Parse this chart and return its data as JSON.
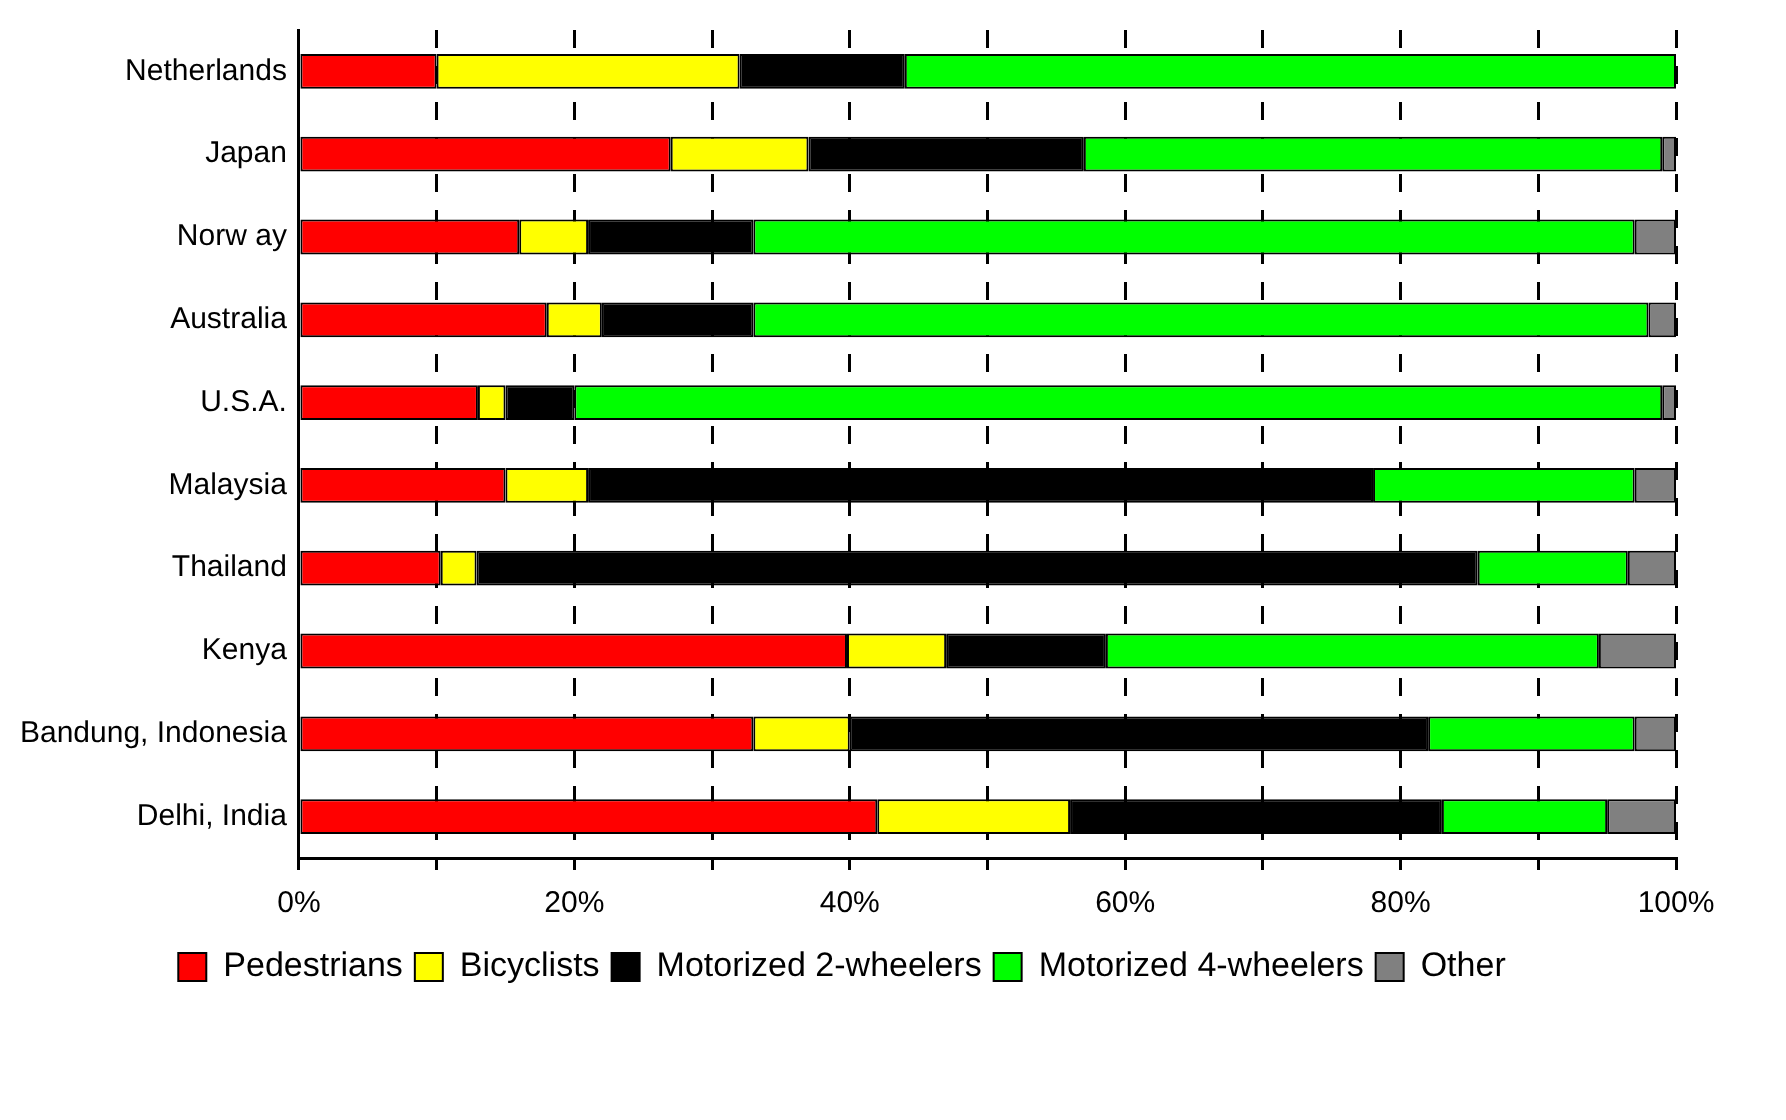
{
  "chart_data": {
    "type": "bar",
    "orientation": "horizontal",
    "stacked": true,
    "categories": [
      "Netherlands",
      "Japan",
      "Norw ay",
      "Australia",
      "U.S.A.",
      "Malaysia",
      "Thailand",
      "Kenya",
      "Bandung, Indonesia",
      "Delhi, India"
    ],
    "series": [
      {
        "name": "Pedestrians",
        "color": "#ff0000",
        "values": [
          10,
          27,
          16,
          18,
          13,
          15,
          10.3,
          39.8,
          33,
          42
        ]
      },
      {
        "name": "Bicyclists",
        "color": "#ffff00",
        "values": [
          22,
          10,
          5,
          4,
          2,
          6,
          2.6,
          7.2,
          7,
          14
        ]
      },
      {
        "name": "Motorized 2-wheelers",
        "color": "#000000",
        "values": [
          12,
          20,
          12,
          11,
          5,
          57,
          72.7,
          11.6,
          42,
          27
        ]
      },
      {
        "name": "Motorized 4-wheelers",
        "color": "#00ff00",
        "values": [
          56,
          42,
          64,
          65,
          79,
          19,
          10.9,
          35.8,
          15,
          12
        ]
      },
      {
        "name": "Other",
        "color": "#808080",
        "values": [
          0,
          1,
          3,
          2,
          1,
          3,
          3.5,
          5.6,
          3,
          5
        ]
      }
    ],
    "xlim": [
      0,
      100
    ],
    "xticks": [
      {
        "value": 0,
        "label": "0%"
      },
      {
        "value": 10,
        "label": null
      },
      {
        "value": 20,
        "label": "20%"
      },
      {
        "value": 30,
        "label": null
      },
      {
        "value": 40,
        "label": "40%"
      },
      {
        "value": 50,
        "label": null
      },
      {
        "value": 60,
        "label": "60%"
      },
      {
        "value": 70,
        "label": null
      },
      {
        "value": 80,
        "label": "80%"
      },
      {
        "value": 90,
        "label": null
      },
      {
        "value": 100,
        "label": "100%"
      }
    ],
    "grid": "x",
    "legend": "bottom"
  }
}
